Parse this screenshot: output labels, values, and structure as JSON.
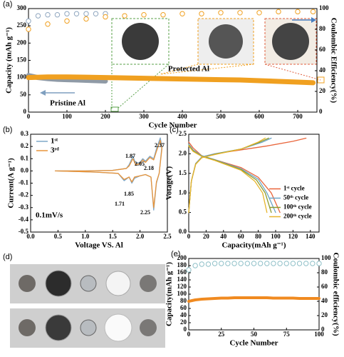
{
  "chart_data": [
    {
      "panel": "(a)",
      "type": "line",
      "xlabel": "Cycle Number",
      "ylabel": "Capacity (mAh g⁻¹)",
      "y2label": "Coulombic Efficiency(%)",
      "xlim": [
        0,
        750
      ],
      "xticks": [
        0,
        100,
        200,
        300,
        400,
        500,
        600,
        700
      ],
      "ylim": [
        0,
        300
      ],
      "yticks": [
        0,
        50,
        100,
        150,
        200,
        250,
        300
      ],
      "y2lim": [
        0,
        100
      ],
      "y2ticks": [
        0,
        20,
        40,
        60,
        80,
        100
      ],
      "series": [
        {
          "color": "#8f9aa6",
          "style": "line",
          "width": 7,
          "x": [
            0,
            25,
            50,
            75,
            100,
            125,
            150,
            175,
            200
          ],
          "values": [
            106,
            100,
            97,
            95,
            94,
            93,
            92,
            91,
            90
          ]
        },
        {
          "color": "#f0a020",
          "style": "line",
          "width": 7,
          "x": [
            0,
            50,
            100,
            150,
            200,
            250,
            300,
            350,
            400,
            450,
            500,
            550,
            600,
            650,
            700,
            740
          ],
          "values": [
            100,
            102,
            102,
            101,
            100,
            99,
            98,
            97,
            96,
            95,
            94,
            93,
            91,
            89,
            87,
            85
          ]
        },
        {
          "color": "#8fa6bf",
          "style": "markers",
          "axis": "y2",
          "x": [
            0,
            25,
            50,
            75,
            100,
            125,
            150,
            175,
            200
          ],
          "values": [
            88,
            93,
            94,
            94,
            95,
            95,
            95,
            95,
            95
          ]
        },
        {
          "color": "#f0a020",
          "style": "markers",
          "axis": "y2",
          "x": [
            0,
            50,
            100,
            150,
            200,
            250,
            300,
            350,
            400,
            450,
            500,
            550,
            600,
            650,
            700,
            740
          ],
          "values": [
            80,
            85,
            88,
            90,
            92,
            93,
            94,
            94,
            95,
            95,
            96,
            96,
            96,
            97,
            97,
            97
          ]
        }
      ],
      "annotations": [
        {
          "text": "Protected Al",
          "color": "#f0a020"
        },
        {
          "text": "Pristine Al",
          "color": "#7f9fbf"
        }
      ]
    },
    {
      "panel": "(b)",
      "type": "line",
      "xlabel": "Voltage VS. Al",
      "ylabel": "Current(A g⁻¹)",
      "xlim": [
        0,
        2.5
      ],
      "xticks": [
        {
          "value": 0,
          "label": "0.0"
        },
        0.5,
        {
          "value": 1,
          "label": "1.0"
        },
        1.5,
        {
          "value": 2,
          "label": "2.0"
        },
        2.5
      ],
      "ylim": [
        -0.5,
        0.3
      ],
      "yticks": [
        -0.5,
        -0.4,
        -0.3,
        -0.2,
        -0.1,
        {
          "value": 0,
          "label": "0.0"
        },
        0.1,
        0.2,
        0.3
      ],
      "x": [
        0.45,
        1.0,
        1.5,
        1.75,
        1.8,
        1.87,
        1.92,
        2.0,
        2.05,
        2.1,
        2.18,
        2.25,
        2.3,
        2.37,
        2.4,
        2.35,
        2.3,
        2.25,
        2.2,
        2.1,
        2.0,
        1.9,
        1.85,
        1.8,
        1.71,
        1.6,
        1.2,
        0.45
      ],
      "series": [
        {
          "name": "1ˢᵗ",
          "color": "#7fa8c9",
          "style": "line",
          "width": 1.3,
          "values": [
            0,
            0,
            0.005,
            0.02,
            0.05,
            0.12,
            0.06,
            0.07,
            0.1,
            0.08,
            0.12,
            0.1,
            0.18,
            0.27,
            0.2,
            -0.02,
            -0.1,
            -0.32,
            -0.05,
            -0.03,
            -0.04,
            -0.06,
            -0.1,
            -0.05,
            -0.08,
            -0.02,
            -0.01,
            0
          ]
        },
        {
          "name": "3ʳᵈ",
          "color": "#e8943a",
          "style": "line",
          "width": 1.3,
          "values": [
            0,
            0,
            0.004,
            0.02,
            0.04,
            0.1,
            0.05,
            0.06,
            0.09,
            0.07,
            0.11,
            0.09,
            0.16,
            0.25,
            0.18,
            -0.02,
            -0.09,
            -0.3,
            -0.05,
            -0.03,
            -0.04,
            -0.05,
            -0.09,
            -0.05,
            -0.07,
            -0.02,
            -0.01,
            0
          ]
        }
      ],
      "legend": "upper left",
      "peaks": [
        1.87,
        2.05,
        2.18,
        2.37,
        1.71,
        1.85,
        2.25
      ],
      "annotations": [
        {
          "text": "0.1mV/s",
          "color": "#000000"
        }
      ]
    },
    {
      "panel": "(c)",
      "type": "line",
      "xlabel": "Capacity(mAh g⁻¹)",
      "ylabel": "Votage(V)",
      "xlim": [
        0,
        150
      ],
      "xticks": [
        0,
        20,
        40,
        60,
        80,
        100,
        120,
        140
      ],
      "ylim": [
        0,
        2.5
      ],
      "yticks": [
        {
          "value": 0,
          "label": "0.0"
        },
        0.5,
        {
          "value": 1,
          "label": "1.0"
        },
        1.5,
        {
          "value": 2,
          "label": "2.0"
        },
        2.5
      ],
      "series": [
        {
          "name": "1ˢᵗ cycle",
          "color": "#e9653b",
          "style": "line",
          "width": 1.3,
          "x": [
            0,
            3,
            8,
            15,
            30,
            60,
            90,
            120,
            135,
            null,
            0,
            5,
            15,
            30,
            60,
            80,
            95,
            105
          ],
          "values": [
            0.5,
            1.3,
            1.75,
            1.92,
            2.0,
            2.1,
            2.2,
            2.32,
            2.4,
            null,
            2.3,
            2.15,
            1.95,
            1.85,
            1.65,
            1.4,
            1.0,
            0.5
          ]
        },
        {
          "name": "50ᵗʰ cycle",
          "color": "#6fa6c8",
          "style": "line",
          "width": 1.3,
          "x": [
            0,
            3,
            8,
            15,
            30,
            60,
            85,
            95,
            null,
            0,
            5,
            15,
            30,
            60,
            80,
            90,
            100
          ],
          "values": [
            0.5,
            1.3,
            1.75,
            1.92,
            2.0,
            2.12,
            2.3,
            2.4,
            null,
            2.25,
            2.1,
            1.95,
            1.85,
            1.62,
            1.35,
            1.0,
            0.5
          ]
        },
        {
          "name": "100ᵗʰ cycle",
          "color": "#8c9b2f",
          "style": "line",
          "width": 1.3,
          "x": [
            0,
            3,
            8,
            15,
            30,
            60,
            82,
            92,
            null,
            0,
            5,
            15,
            30,
            60,
            78,
            88,
            95
          ],
          "values": [
            0.5,
            1.3,
            1.74,
            1.9,
            1.99,
            2.12,
            2.3,
            2.4,
            null,
            2.22,
            2.08,
            1.94,
            1.84,
            1.6,
            1.33,
            1.0,
            0.5
          ]
        },
        {
          "name": "200ᵗʰ cycle",
          "color": "#e7b52c",
          "style": "line",
          "width": 1.3,
          "x": [
            0,
            3,
            8,
            15,
            30,
            60,
            80,
            88,
            null,
            0,
            5,
            15,
            30,
            60,
            76,
            85,
            90
          ],
          "values": [
            0.5,
            1.3,
            1.73,
            1.9,
            1.98,
            2.12,
            2.3,
            2.4,
            null,
            2.2,
            2.06,
            1.93,
            1.83,
            1.58,
            1.3,
            1.0,
            0.5
          ]
        }
      ],
      "legend": "center right"
    },
    {
      "panel": "(e)",
      "type": "line",
      "xlabel": "Cycle Number",
      "ylabel": "Capacity(mAh g⁻¹)",
      "y2label": "Coulombic efficiency(%)",
      "xlim": [
        0,
        100
      ],
      "xticks": [
        0,
        25,
        50,
        75,
        100
      ],
      "ylim": [
        0,
        200
      ],
      "yticks": [
        0,
        20,
        40,
        60,
        80,
        100,
        120,
        140,
        160,
        180,
        200
      ],
      "y2lim": [
        0,
        100
      ],
      "y2ticks": [
        0,
        20,
        40,
        60,
        80,
        100
      ],
      "series": [
        {
          "color": "#f08a20",
          "style": "line",
          "width": 4,
          "x": [
            0,
            5,
            10,
            15,
            20,
            25,
            30,
            35,
            40,
            45,
            50,
            55,
            60,
            65,
            70,
            75,
            80,
            85,
            90,
            95,
            100
          ],
          "values": [
            80,
            84,
            86,
            87,
            88,
            89,
            89,
            90,
            90,
            90,
            90,
            90,
            90,
            89,
            89,
            89,
            89,
            88,
            88,
            88,
            88
          ]
        },
        {
          "color": "#8fc0c8",
          "style": "markers",
          "axis": "y2",
          "x": [
            0,
            5,
            10,
            15,
            20,
            25,
            30,
            35,
            40,
            45,
            50,
            55,
            60,
            65,
            70,
            75,
            80,
            85,
            90,
            95,
            100
          ],
          "values": [
            84,
            90,
            92,
            92,
            93,
            93,
            93,
            93,
            93,
            93,
            93,
            93,
            93,
            93,
            93,
            93,
            93,
            93,
            93,
            93,
            93
          ]
        }
      ]
    }
  ],
  "photo_panel": {
    "label": "(d)"
  }
}
